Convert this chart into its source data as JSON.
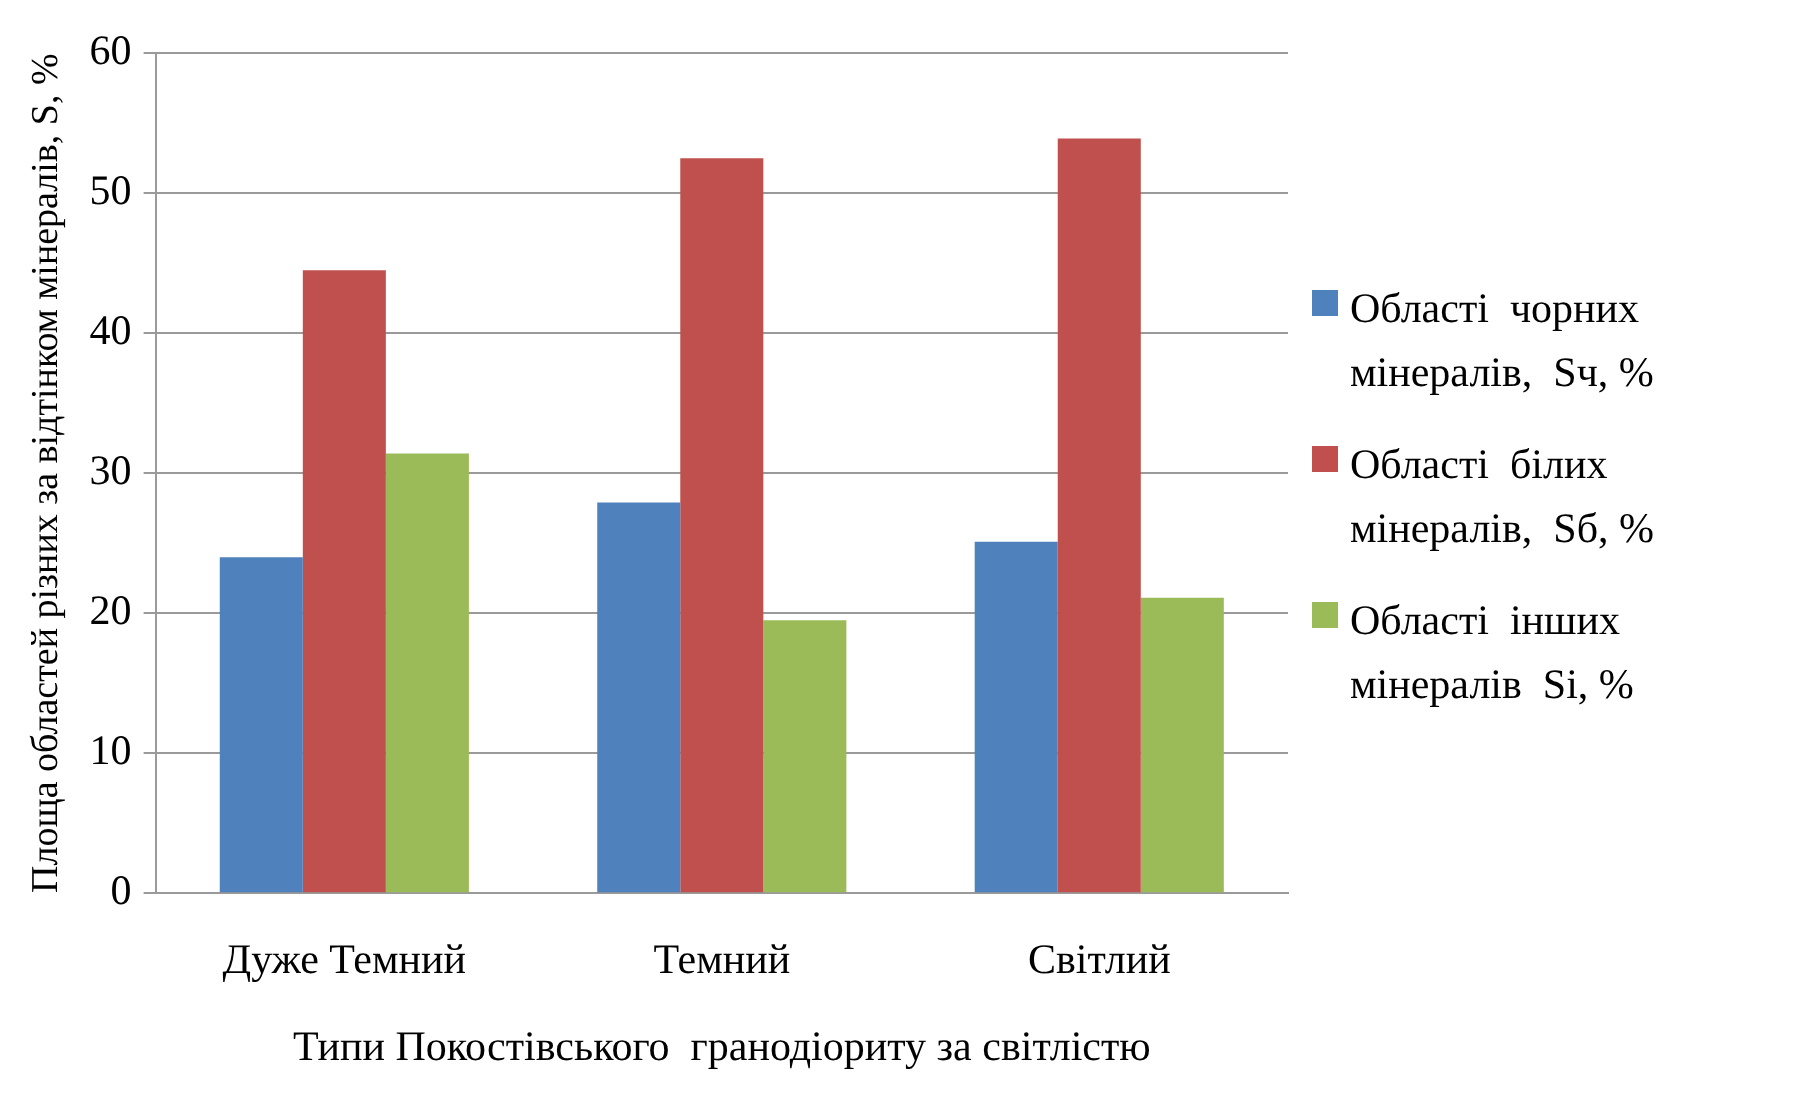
{
  "chart_data": {
    "type": "bar",
    "xlabel": "Типи Покостівського  гранодіориту за світлістю",
    "ylabel": "Площа областей різних за відтінком мінералів, S, %",
    "categories": [
      "Дуже Темний",
      "Темний",
      "Світлий"
    ],
    "series": [
      {
        "name": "Області  чорних мінералів,  Sч, %",
        "color": "#4f81bd",
        "values": [
          24.0,
          27.9,
          25.1
        ]
      },
      {
        "name": "Області  білих мінералів,  Sб, %",
        "color": "#c0504d",
        "values": [
          44.5,
          52.5,
          53.9
        ]
      },
      {
        "name": "Області  інших мінералів  Si, %",
        "color": "#9bbb59",
        "values": [
          31.4,
          19.5,
          21.1
        ]
      }
    ],
    "ylim": [
      0,
      60
    ],
    "yticks": [
      0,
      10,
      20,
      30,
      40,
      50,
      60
    ],
    "grid": "y",
    "legend": "right"
  }
}
